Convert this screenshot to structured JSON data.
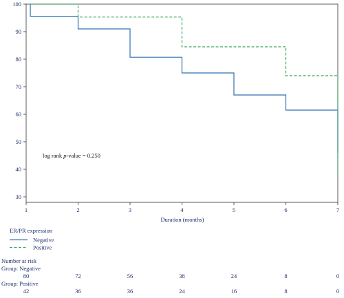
{
  "chart_data": {
    "type": "line",
    "step": true,
    "xlabel": "Duration (months)",
    "ylabel": "",
    "xlim": [
      1,
      7
    ],
    "ylim": [
      28,
      100
    ],
    "x_ticks": [
      1,
      2,
      3,
      4,
      5,
      6,
      7
    ],
    "y_ticks": [
      30,
      40,
      50,
      60,
      70,
      80,
      90,
      100
    ],
    "grid": false,
    "annotation": {
      "prefix": "log rank ",
      "italic": "p",
      "suffix": "-value = 0.250"
    },
    "legend": {
      "title": "ER/PR expression",
      "placement": "below-left"
    },
    "series": [
      {
        "name": "Negative",
        "color": "#2e6fb0",
        "dash": "solid",
        "points": [
          [
            1.08,
            100
          ],
          [
            1.08,
            95.6
          ],
          [
            2,
            95.6
          ],
          [
            2,
            91
          ],
          [
            3,
            91
          ],
          [
            3,
            80.7
          ],
          [
            4,
            80.7
          ],
          [
            4,
            75
          ],
          [
            5,
            75
          ],
          [
            5,
            67
          ],
          [
            6,
            67
          ],
          [
            6,
            61.5
          ],
          [
            7,
            61.5
          ],
          [
            7,
            46
          ]
        ]
      },
      {
        "name": "Positive",
        "color": "#3aa35c",
        "dash": "dashed",
        "points": [
          [
            1.08,
            100
          ],
          [
            2,
            100
          ],
          [
            2,
            95.3
          ],
          [
            3,
            95.3
          ],
          [
            4,
            95.3
          ],
          [
            4,
            84.5
          ],
          [
            5,
            84.5
          ],
          [
            6,
            84.5
          ],
          [
            6,
            74
          ],
          [
            7,
            74
          ],
          [
            7,
            37.5
          ]
        ]
      }
    ],
    "risk_table": {
      "title": "Number at risk",
      "groups": [
        {
          "label": "Group: Negative",
          "values": [
            "80",
            "72",
            "56",
            "38",
            "24",
            "8",
            "0"
          ]
        },
        {
          "label": "Group: Positive",
          "values": [
            "42",
            "36",
            "36",
            "24",
            "16",
            "8",
            "0"
          ]
        }
      ]
    }
  }
}
